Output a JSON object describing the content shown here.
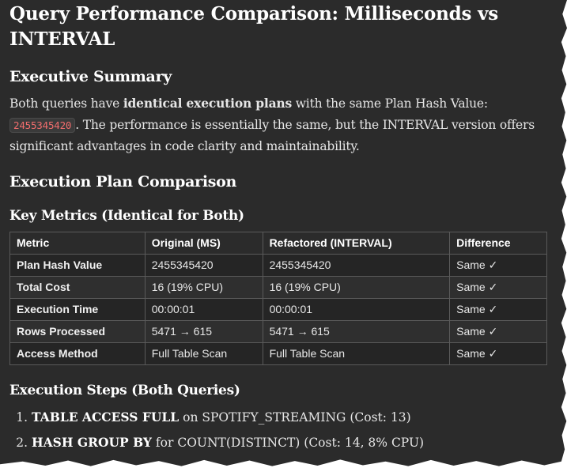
{
  "title": "Query Performance Comparison: Milliseconds vs INTERVAL",
  "summary": {
    "heading": "Executive Summary",
    "intro": "Both queries have ",
    "bold": "identical execution plans",
    "mid": " with the same Plan Hash Value: ",
    "hash": "2455345420",
    "end": ". The performance is essentially the same, but the INTERVAL version offers significant advantages in code clarity and maintainability."
  },
  "plan": {
    "heading": "Execution Plan Comparison",
    "metrics_heading": "Key Metrics (Identical for Both)",
    "table": {
      "headers": [
        "Metric",
        "Original (MS)",
        "Refactored (INTERVAL)",
        "Difference"
      ],
      "rows": [
        [
          "Plan Hash Value",
          "2455345420",
          "2455345420",
          "Same ✓"
        ],
        [
          "Total Cost",
          "16 (19% CPU)",
          "16 (19% CPU)",
          "Same ✓"
        ],
        [
          "Execution Time",
          "00:00:01",
          "00:00:01",
          "Same ✓"
        ],
        [
          "Rows Processed",
          "5471 → 615",
          "5471 → 615",
          "Same ✓"
        ],
        [
          "Access Method",
          "Full Table Scan",
          "Full Table Scan",
          "Same ✓"
        ]
      ]
    }
  },
  "steps": {
    "heading": "Execution Steps (Both Queries)",
    "items": [
      {
        "bold": "TABLE ACCESS FULL",
        "rest": " on SPOTIFY_STREAMING (Cost: 13)"
      },
      {
        "bold": "HASH GROUP BY",
        "rest": " for COUNT(DISTINCT) (Cost: 14, 8% CPU)"
      }
    ]
  }
}
